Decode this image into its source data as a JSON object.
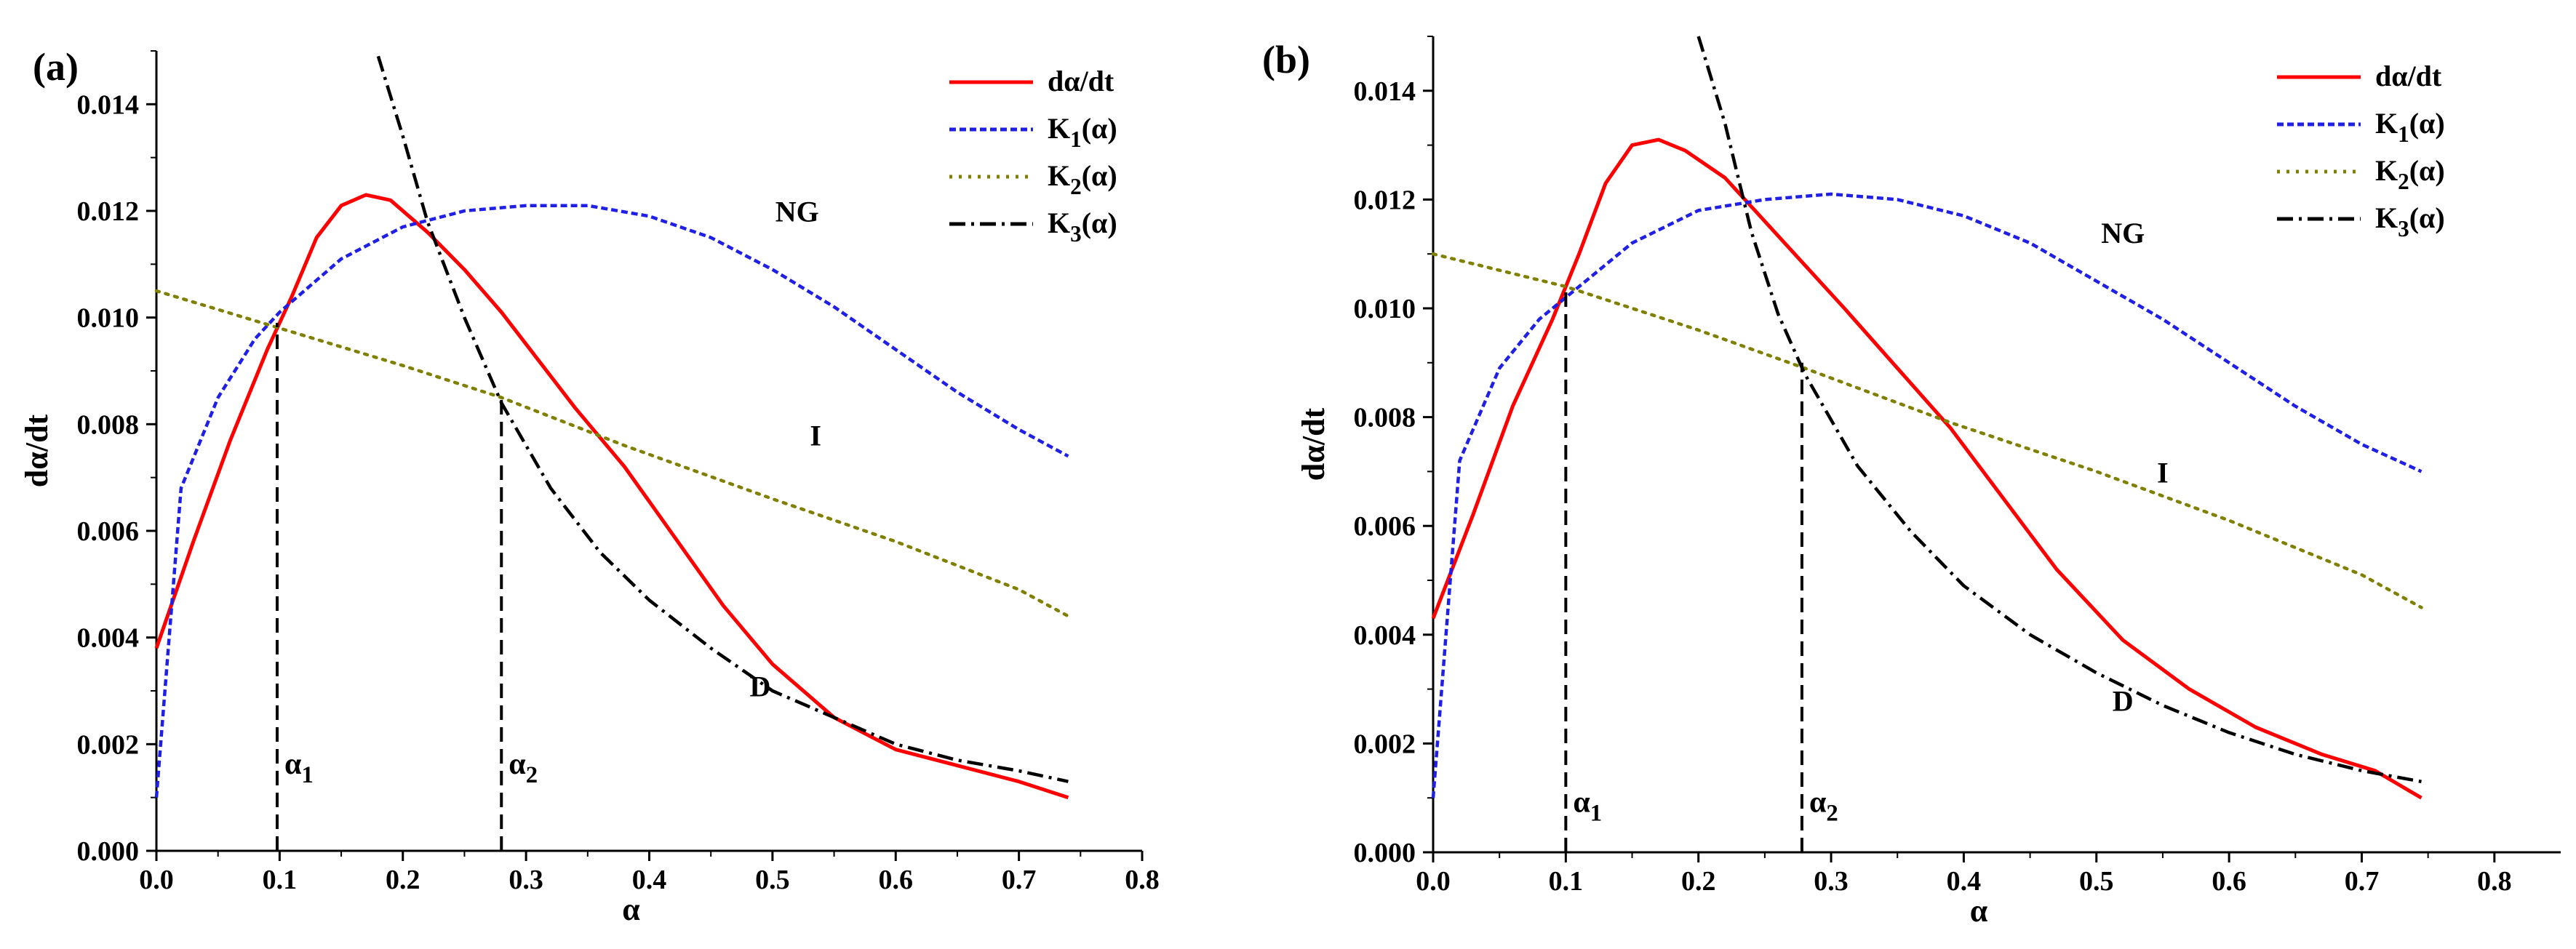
{
  "chart_data": [
    {
      "type": "line",
      "panel_label": "(a)",
      "xlabel": "α",
      "ylabel": "dα/dt",
      "xlim": [
        0.0,
        0.8
      ],
      "ylim": [
        0.0,
        0.015
      ],
      "xticks": [
        "0.0",
        "0.1",
        "0.2",
        "0.3",
        "0.4",
        "0.5",
        "0.6",
        "0.7",
        "0.8"
      ],
      "yticks": [
        "0.000",
        "0.002",
        "0.004",
        "0.006",
        "0.008",
        "0.010",
        "0.012",
        "0.014"
      ],
      "legend_position": "top-right",
      "series": [
        {
          "name": "dα/dt",
          "style": "solid",
          "color": "#ff0000",
          "x": [
            0.0,
            0.03,
            0.06,
            0.09,
            0.11,
            0.13,
            0.15,
            0.17,
            0.19,
            0.22,
            0.25,
            0.28,
            0.31,
            0.34,
            0.38,
            0.42,
            0.46,
            0.5,
            0.55,
            0.6,
            0.65,
            0.7,
            0.74
          ],
          "y": [
            0.0038,
            0.0058,
            0.0077,
            0.0094,
            0.0104,
            0.0115,
            0.0121,
            0.0123,
            0.0122,
            0.0116,
            0.0109,
            0.0101,
            0.0092,
            0.0083,
            0.0072,
            0.0059,
            0.0046,
            0.0035,
            0.0025,
            0.0019,
            0.0016,
            0.0013,
            0.001
          ]
        },
        {
          "name": "K",
          "sub": "1",
          "suffix": "(α)",
          "style": "dash",
          "color": "#1f1fe6",
          "x": [
            0.0,
            0.02,
            0.05,
            0.08,
            0.1,
            0.15,
            0.2,
            0.25,
            0.3,
            0.35,
            0.4,
            0.45,
            0.5,
            0.55,
            0.6,
            0.65,
            0.7,
            0.74
          ],
          "y": [
            0.001,
            0.0068,
            0.0085,
            0.0096,
            0.0101,
            0.0111,
            0.0117,
            0.012,
            0.0121,
            0.0121,
            0.0119,
            0.0115,
            0.0109,
            0.0102,
            0.0094,
            0.0086,
            0.0079,
            0.0074
          ]
        },
        {
          "name": "K",
          "sub": "2",
          "suffix": "(α)",
          "style": "dot",
          "color": "#808000",
          "x": [
            0.0,
            0.1,
            0.2,
            0.28,
            0.38,
            0.5,
            0.6,
            0.7,
            0.74
          ],
          "y": [
            0.0105,
            0.0098,
            0.0091,
            0.0085,
            0.0076,
            0.0066,
            0.0058,
            0.0049,
            0.0044
          ]
        },
        {
          "name": "K",
          "sub": "3",
          "suffix": "(α)",
          "style": "dashdot",
          "color": "#000000",
          "x": [
            0.18,
            0.2,
            0.22,
            0.25,
            0.28,
            0.32,
            0.36,
            0.4,
            0.45,
            0.5,
            0.55,
            0.6,
            0.65,
            0.7,
            0.74
          ],
          "y": [
            0.0149,
            0.0134,
            0.0118,
            0.01,
            0.0084,
            0.0068,
            0.0056,
            0.0047,
            0.0038,
            0.003,
            0.0025,
            0.002,
            0.0017,
            0.0015,
            0.0013
          ]
        }
      ],
      "vlines": [
        {
          "x": 0.098,
          "ytop": 0.0099,
          "label": "α",
          "sub": "1",
          "label_y": 0.0012
        },
        {
          "x": 0.28,
          "ytop": 0.0085,
          "label": "α",
          "sub": "2",
          "label_y": 0.0012
        }
      ],
      "annotations": [
        {
          "text": "NG",
          "x": 0.52,
          "y": 0.0118
        },
        {
          "text": "I",
          "x": 0.535,
          "y": 0.0076
        },
        {
          "text": "D",
          "x": 0.49,
          "y": 0.0029
        }
      ]
    },
    {
      "type": "line",
      "panel_label": "(b)",
      "xlabel": "α",
      "ylabel": "dα/dt",
      "xlim": [
        0.0,
        0.85
      ],
      "ylim": [
        0.0,
        0.015
      ],
      "xticks": [
        "0.0",
        "0.1",
        "0.2",
        "0.3",
        "0.4",
        "0.5",
        "0.6",
        "0.7",
        "0.8"
      ],
      "yticks": [
        "0.000",
        "0.002",
        "0.004",
        "0.006",
        "0.008",
        "0.010",
        "0.012",
        "0.014"
      ],
      "legend_position": "top-right",
      "series": [
        {
          "name": "dα/dt",
          "style": "solid",
          "color": "#ff0000",
          "x": [
            0.0,
            0.03,
            0.06,
            0.09,
            0.11,
            0.13,
            0.15,
            0.17,
            0.19,
            0.22,
            0.25,
            0.28,
            0.31,
            0.35,
            0.39,
            0.43,
            0.47,
            0.52,
            0.57,
            0.62,
            0.67,
            0.71,
            0.745
          ],
          "y": [
            0.0043,
            0.0062,
            0.0082,
            0.0098,
            0.011,
            0.0123,
            0.013,
            0.0131,
            0.0129,
            0.0124,
            0.0116,
            0.0108,
            0.01,
            0.0089,
            0.0078,
            0.0065,
            0.0052,
            0.0039,
            0.003,
            0.0023,
            0.0018,
            0.0015,
            0.001
          ]
        },
        {
          "name": "K",
          "sub": "1",
          "suffix": "(α)",
          "style": "dash",
          "color": "#1f1fe6",
          "x": [
            0.0,
            0.02,
            0.05,
            0.08,
            0.1,
            0.15,
            0.2,
            0.25,
            0.3,
            0.35,
            0.4,
            0.45,
            0.5,
            0.55,
            0.6,
            0.65,
            0.7,
            0.745
          ],
          "y": [
            0.001,
            0.0072,
            0.0089,
            0.0098,
            0.0102,
            0.0112,
            0.0118,
            0.012,
            0.0121,
            0.012,
            0.0117,
            0.0112,
            0.0105,
            0.0098,
            0.009,
            0.0082,
            0.0075,
            0.007
          ]
        },
        {
          "name": "K",
          "sub": "2",
          "suffix": "(α)",
          "style": "dot",
          "color": "#808000",
          "x": [
            0.0,
            0.1,
            0.2,
            0.28,
            0.39,
            0.5,
            0.6,
            0.7,
            0.745
          ],
          "y": [
            0.011,
            0.0104,
            0.0096,
            0.0089,
            0.0079,
            0.007,
            0.0061,
            0.0051,
            0.0045
          ]
        },
        {
          "name": "K",
          "sub": "3",
          "suffix": "(α)",
          "style": "dashdot",
          "color": "#000000",
          "x": [
            0.2,
            0.22,
            0.24,
            0.26,
            0.28,
            0.32,
            0.36,
            0.4,
            0.45,
            0.5,
            0.55,
            0.6,
            0.65,
            0.7,
            0.745
          ],
          "y": [
            0.015,
            0.0134,
            0.0114,
            0.0099,
            0.0088,
            0.0071,
            0.0059,
            0.0049,
            0.004,
            0.0033,
            0.0027,
            0.0022,
            0.0018,
            0.0015,
            0.0013
          ]
        }
      ],
      "vlines": [
        {
          "x": 0.1,
          "ytop": 0.0104,
          "label": "α",
          "sub": "1",
          "label_y": 0.0005
        },
        {
          "x": 0.278,
          "ytop": 0.009,
          "label": "α",
          "sub": "2",
          "label_y": 0.0005
        }
      ],
      "annotations": [
        {
          "text": "NG",
          "x": 0.52,
          "y": 0.0112
        },
        {
          "text": "I",
          "x": 0.55,
          "y": 0.0068
        },
        {
          "text": "D",
          "x": 0.52,
          "y": 0.0026
        }
      ]
    }
  ]
}
